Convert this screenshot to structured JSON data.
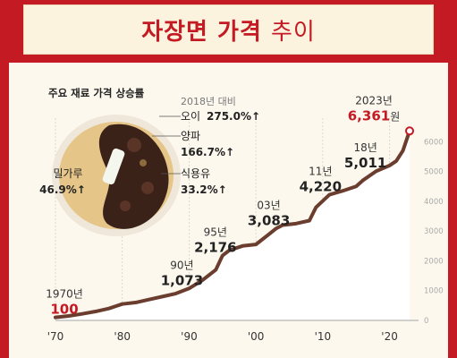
{
  "header": {
    "title_main": "자장면 가격",
    "title_sub": "추이"
  },
  "ingredients": {
    "title": "주요 재료 가격 상승률",
    "baseline": "2018년 대비",
    "items": [
      {
        "name": "오이",
        "value": "275.0%↑"
      },
      {
        "name": "양파",
        "value": "166.7%↑"
      },
      {
        "name": "식용유",
        "value": "33.2%↑"
      },
      {
        "name": "밀가루",
        "value": "46.9%↑"
      }
    ]
  },
  "colors": {
    "background": "#c41a24",
    "banner": "#fbf3dd",
    "line": "#6b3d2e",
    "accent": "#c41a24",
    "panel": "#fcf8ee"
  },
  "chart_data": {
    "type": "area",
    "title": "",
    "xlabel": "",
    "ylabel": "",
    "x_tick_labels": [
      "'70",
      "'80",
      "'90",
      "'00",
      "'10",
      "'20"
    ],
    "x_ticks": [
      1970,
      1980,
      1990,
      2000,
      2010,
      2020
    ],
    "y_ticks": [
      0,
      1000,
      2000,
      3000,
      4000,
      5000,
      6000
    ],
    "y_tick_labels": [
      "0",
      "1000",
      "2000",
      "3000",
      "4000",
      "5000",
      "6000"
    ],
    "xlim": [
      1970,
      2023
    ],
    "ylim": [
      0,
      6400
    ],
    "grid": "vertical",
    "x": [
      1970,
      1972,
      1974,
      1976,
      1978,
      1980,
      1982,
      1984,
      1986,
      1988,
      1990,
      1992,
      1994,
      1995,
      1996,
      1998,
      2000,
      2002,
      2003,
      2004,
      2006,
      2008,
      2009,
      2011,
      2013,
      2015,
      2016,
      2018,
      2020,
      2021,
      2022,
      2023
    ],
    "y": [
      100,
      150,
      220,
      300,
      400,
      550,
      600,
      700,
      800,
      900,
      1073,
      1350,
      1700,
      2176,
      2350,
      2500,
      2550,
      2900,
      3083,
      3200,
      3250,
      3350,
      3800,
      4220,
      4350,
      4500,
      4700,
      5011,
      5200,
      5350,
      5700,
      6361
    ],
    "annotations": [
      {
        "year": "1970년",
        "value": "100",
        "x": 1970,
        "y": 100,
        "highlight": true
      },
      {
        "year": "90년",
        "value": "1,073",
        "x": 1990,
        "y": 1073,
        "highlight": false
      },
      {
        "year": "95년",
        "value": "2,176",
        "x": 1995,
        "y": 2176,
        "highlight": false
      },
      {
        "year": "03년",
        "value": "3,083",
        "x": 2003,
        "y": 3083,
        "highlight": false
      },
      {
        "year": "11년",
        "value": "4,220",
        "x": 2011,
        "y": 4220,
        "highlight": false
      },
      {
        "year": "18년",
        "value": "5,011",
        "x": 2018,
        "y": 5011,
        "highlight": false
      },
      {
        "year": "2023년",
        "value": "6,361",
        "unit": "원",
        "x": 2023,
        "y": 6361,
        "highlight": true
      }
    ]
  }
}
